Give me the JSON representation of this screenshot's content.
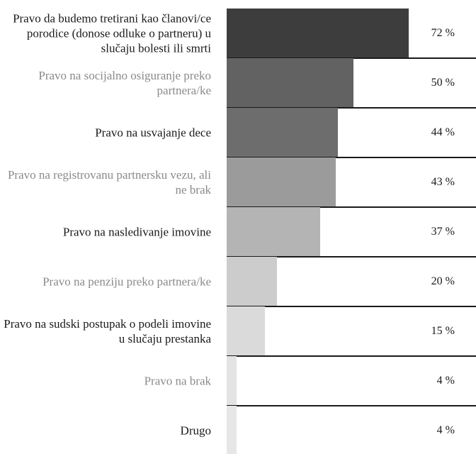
{
  "chart_data": {
    "type": "bar",
    "orientation": "horizontal",
    "value_suffix": " %",
    "xlim": [
      0,
      100
    ],
    "categories": [
      "Pravo da budemo tretirani kao članovi/ce porodice (donose odluke o partneru) u slučaju bolesti ili smrti",
      "Pravo na socijalno osiguranje preko partnera/ke",
      "Pravo na usvajanje dece",
      "Pravo na registrovanu partnersku vezu, ali ne brak",
      "Pravo na nasledivanje imovine",
      "Pravo na penziju preko partnera/ke",
      "Pravo na sudski postupak o podeli imovine u slučaju prestanka",
      "Pravo na brak",
      "Drugo"
    ],
    "values": [
      72,
      50,
      44,
      43,
      37,
      20,
      15,
      4,
      4
    ],
    "value_labels": [
      "72 %",
      "50 %",
      "44 %",
      "43 %",
      "37 %",
      "20 %",
      "15 %",
      "4 %",
      "4 %"
    ],
    "bar_colors": [
      "#3d3d3d",
      "#626262",
      "#6d6d6d",
      "#9b9b9b",
      "#b4b4b4",
      "#cccccc",
      "#dadada",
      "#e3e3e3",
      "#e6e6e6"
    ],
    "label_colors": [
      "#1a1a1a",
      "#8a8a8a",
      "#1a1a1a",
      "#8a8a8a",
      "#1a1a1a",
      "#8a8a8a",
      "#1a1a1a",
      "#8a8a8a",
      "#1a1a1a"
    ],
    "grid": false,
    "legend": "none"
  }
}
